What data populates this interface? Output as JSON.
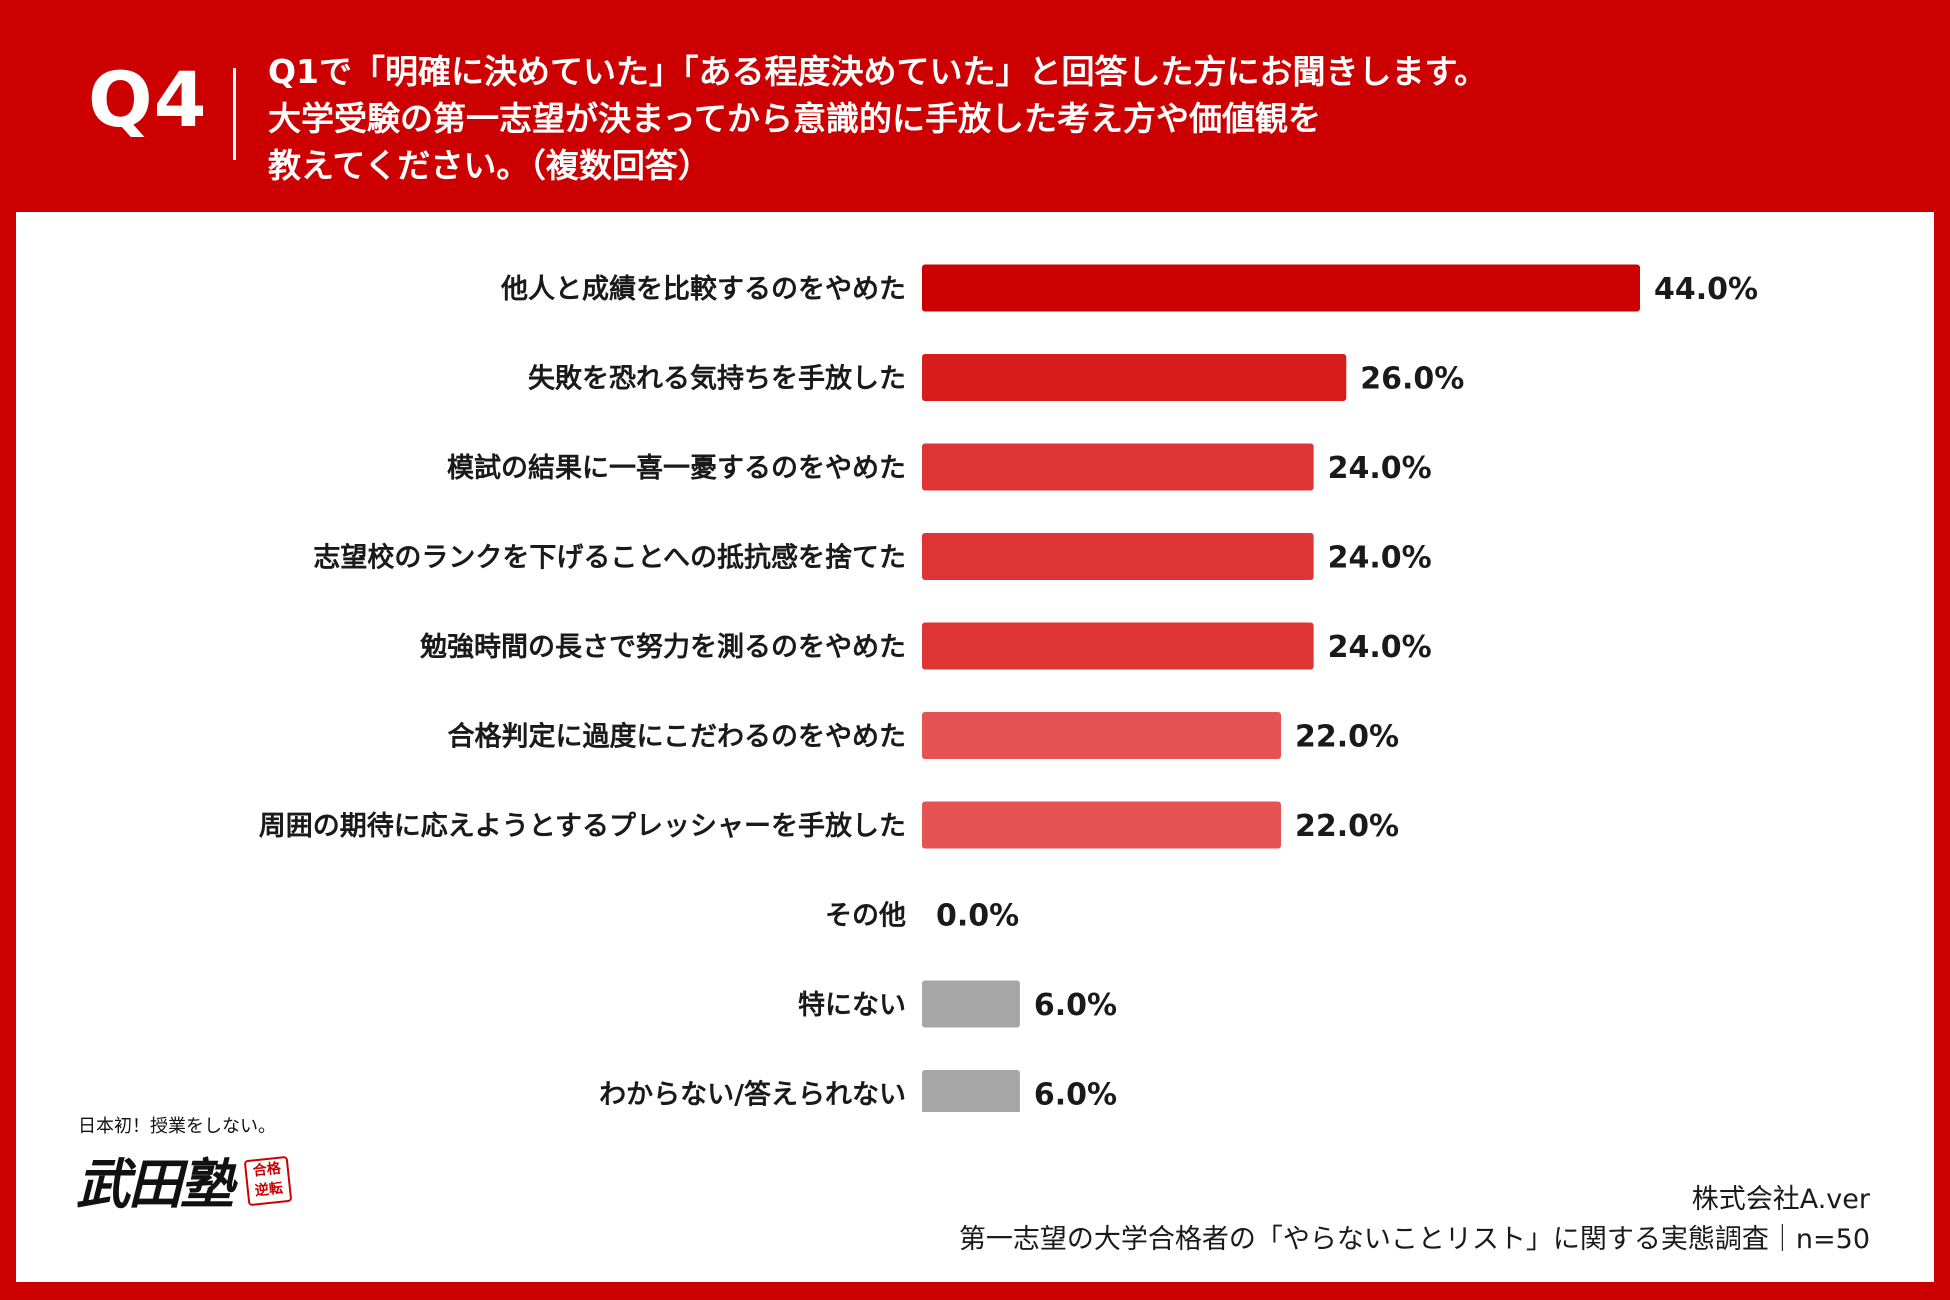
{
  "header": {
    "q_label": "Q4",
    "question_lines": [
      "Q1で「明確に決めていた」「ある程度決めていた」と回答した方にお聞きします。",
      "大学受験の第一志望が決まってから意識的に手放した考え方や価値観を",
      "教えてください。（複数回答）"
    ]
  },
  "chart_data": {
    "type": "bar",
    "orientation": "horizontal",
    "categories": [
      "他人と成績を比較するのをやめた",
      "失敗を恐れる気持ちを手放した",
      "模試の結果に一喜一憂するのをやめた",
      "志望校のランクを下げることへの抵抗感を捨てた",
      "勉強時間の長さで努力を測るのをやめた",
      "合格判定に過度にこだわるのをやめた",
      "周囲の期待に応えようとするプレッシャーを手放した",
      "その他",
      "特にない",
      "わからない/答えられない"
    ],
    "values": [
      44.0,
      26.0,
      24.0,
      24.0,
      24.0,
      22.0,
      22.0,
      0.0,
      6.0,
      6.0
    ],
    "value_labels": [
      "44.0%",
      "26.0%",
      "24.0%",
      "24.0%",
      "24.0%",
      "22.0%",
      "22.0%",
      "0.0%",
      "6.0%",
      "6.0%"
    ],
    "bar_colors": [
      "#cc0000",
      "#d81c1c",
      "#df3434",
      "#df3434",
      "#df3434",
      "#e55353",
      "#e55353",
      "#e55353",
      "#a6a6a6",
      "#a6a6a6"
    ],
    "unit": "%",
    "xlim": [
      0,
      44
    ],
    "grid": false,
    "legend": "none"
  },
  "footer": {
    "company": "株式会社A.ver",
    "survey": "第一志望の大学合格者の「やらないことリスト」に関する実態調査｜n=50"
  },
  "logo": {
    "tagline": "日本初！授業をしない。",
    "mark": "武田塾",
    "seal": "合格\n逆転"
  },
  "colors": {
    "header_background": "#cc0000",
    "panel_background": "#ffffff",
    "text": "#1a1a1a"
  }
}
